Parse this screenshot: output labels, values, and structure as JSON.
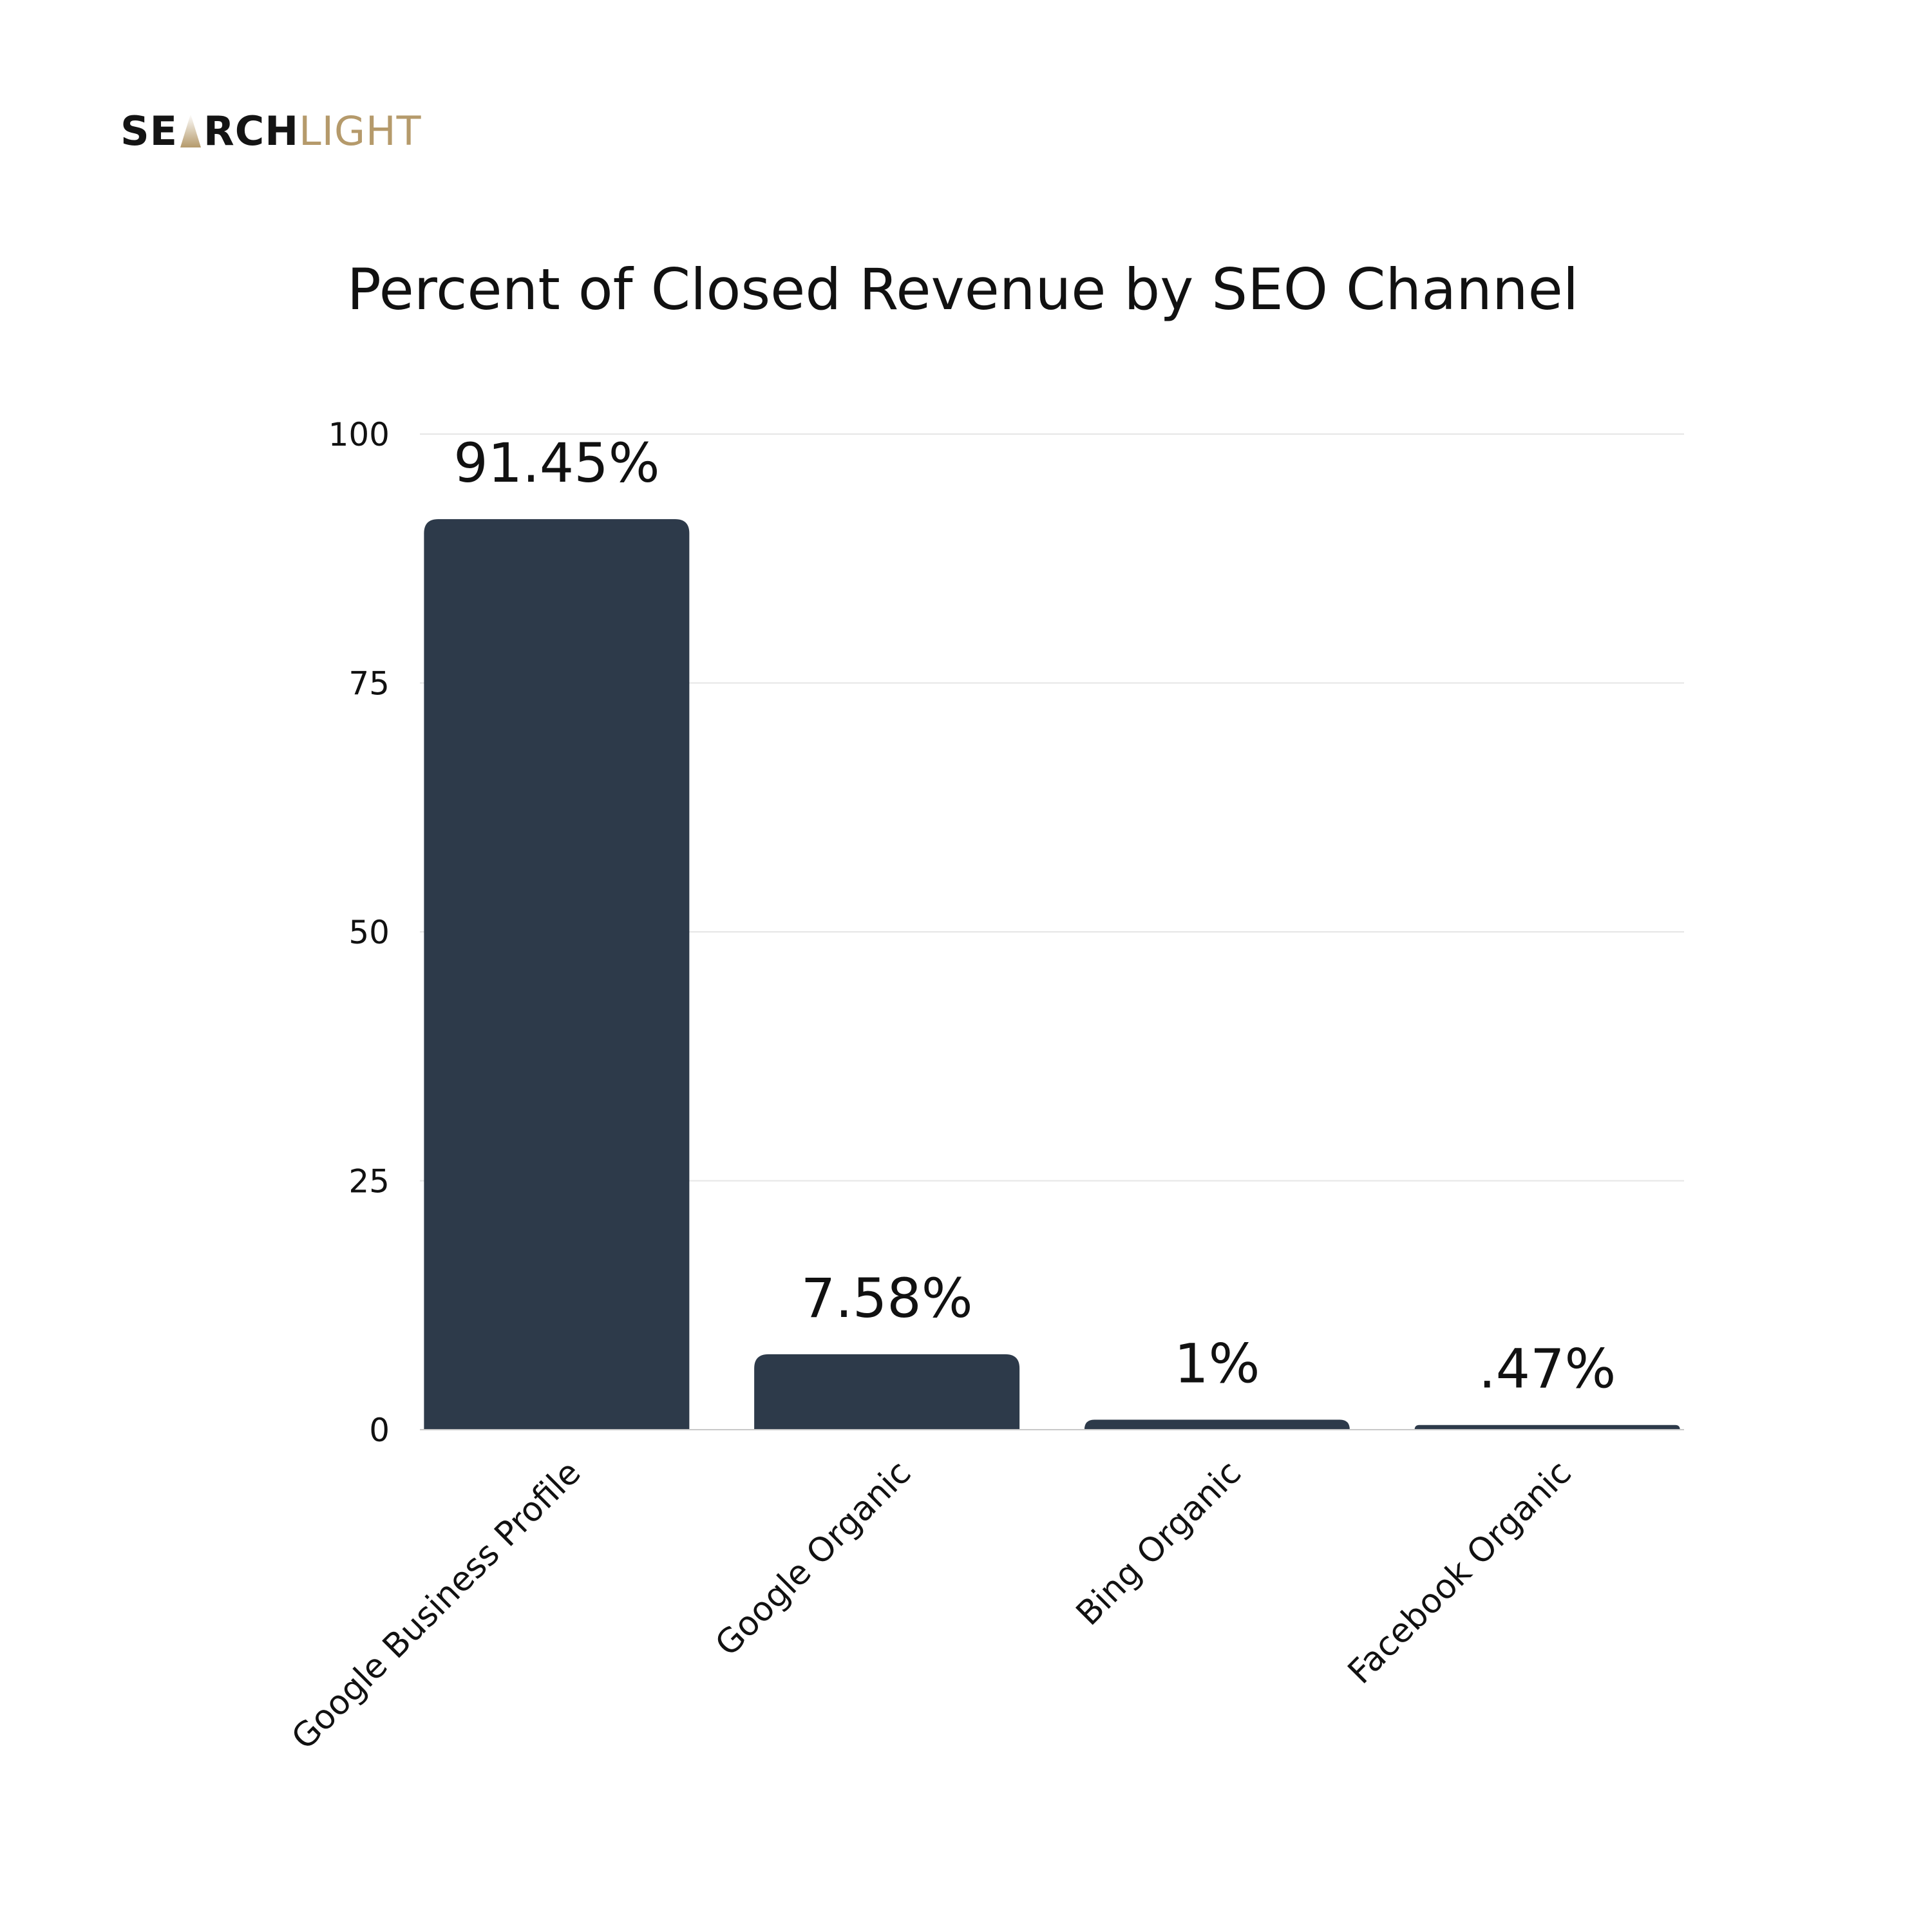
{
  "brand": {
    "part1": "SE",
    "part2": "RCH",
    "part3": "LIGHT",
    "logo_icon": "searchlight-beam-icon",
    "dark_color": "#141414",
    "gold_color": "#b59a6b"
  },
  "chart_data": {
    "type": "bar",
    "title": "Percent of Closed Revenue by SEO Channel",
    "xlabel": "",
    "ylabel": "",
    "categories": [
      "Google Business Profile",
      "Google Organic",
      "Bing Organic",
      "Facebook Organic"
    ],
    "values": [
      91.45,
      7.58,
      1,
      0.47
    ],
    "data_labels": [
      "91.45%",
      "7.58%",
      "1%",
      ".47%"
    ],
    "ylim": [
      0,
      100
    ],
    "yticks": [
      0,
      25,
      50,
      75,
      100
    ],
    "ytick_labels": [
      "0",
      "25",
      "50",
      "75",
      "100"
    ],
    "grid": true,
    "legend": "none",
    "bar_color": "#2d3a4a",
    "grid_color": "#e6e6e6"
  }
}
